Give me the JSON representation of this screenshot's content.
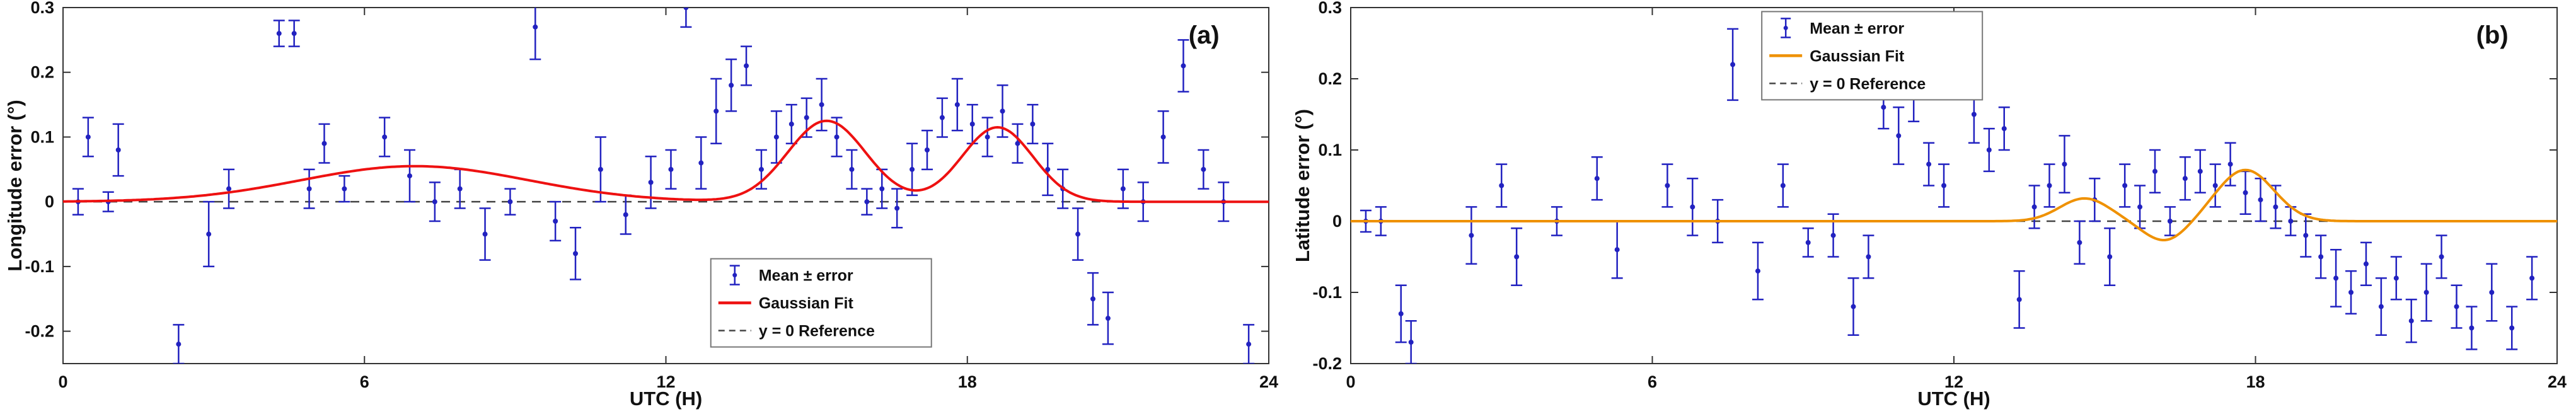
{
  "figure": {
    "background": "#ffffff"
  },
  "chart_data": [
    {
      "type": "scatter",
      "panel_label": "(a)",
      "panel_label_pos": [
        0.935,
        0.105
      ],
      "xlabel": "UTC (H)",
      "ylabel": "Longitude error (°)",
      "xlim": [
        0,
        24
      ],
      "ylim": [
        -0.25,
        0.3
      ],
      "xticks": [
        0,
        6,
        12,
        18,
        24
      ],
      "xticklabels": [
        "0",
        "6",
        "12",
        "18",
        "24"
      ],
      "yticks": [
        0.3,
        0.2,
        0.1,
        0,
        -0.1,
        -0.2
      ],
      "yticklabels": [
        "0.3",
        "0.2",
        "0.1",
        "0",
        "-0.1",
        "-0.2"
      ],
      "grid": false,
      "colors": {
        "frame": "#333333",
        "reference": "#444444",
        "data": "#2222c0",
        "fit": "#ee1111"
      },
      "points": [
        [
          0.3,
          0.0,
          0.02
        ],
        [
          0.5,
          0.1,
          0.03
        ],
        [
          0.9,
          0.0,
          0.015
        ],
        [
          1.1,
          0.08,
          0.04
        ],
        [
          2.3,
          -0.22,
          0.03
        ],
        [
          2.9,
          -0.05,
          0.05
        ],
        [
          3.3,
          0.02,
          0.03
        ],
        [
          4.3,
          0.26,
          0.02
        ],
        [
          4.6,
          0.26,
          0.02
        ],
        [
          4.9,
          0.02,
          0.03
        ],
        [
          5.2,
          0.09,
          0.03
        ],
        [
          5.6,
          0.02,
          0.02
        ],
        [
          6.4,
          0.1,
          0.03
        ],
        [
          6.9,
          0.04,
          0.04
        ],
        [
          7.4,
          0.0,
          0.03
        ],
        [
          7.9,
          0.02,
          0.03
        ],
        [
          8.4,
          -0.05,
          0.04
        ],
        [
          8.9,
          0.0,
          0.02
        ],
        [
          9.4,
          0.27,
          0.05
        ],
        [
          9.8,
          -0.03,
          0.03
        ],
        [
          10.2,
          -0.08,
          0.04
        ],
        [
          10.7,
          0.05,
          0.05
        ],
        [
          11.2,
          -0.02,
          0.03
        ],
        [
          11.7,
          0.03,
          0.04
        ],
        [
          12.1,
          0.05,
          0.03
        ],
        [
          12.4,
          0.3,
          0.03
        ],
        [
          12.7,
          0.06,
          0.04
        ],
        [
          13.0,
          0.14,
          0.05
        ],
        [
          13.3,
          0.18,
          0.04
        ],
        [
          13.6,
          0.21,
          0.03
        ],
        [
          13.9,
          0.05,
          0.03
        ],
        [
          14.2,
          0.1,
          0.04
        ],
        [
          14.5,
          0.12,
          0.03
        ],
        [
          14.8,
          0.13,
          0.03
        ],
        [
          15.1,
          0.15,
          0.04
        ],
        [
          15.4,
          0.1,
          0.03
        ],
        [
          15.7,
          0.05,
          0.03
        ],
        [
          16.0,
          0.0,
          0.02
        ],
        [
          16.3,
          0.02,
          0.03
        ],
        [
          16.6,
          -0.01,
          0.03
        ],
        [
          16.9,
          0.05,
          0.04
        ],
        [
          17.2,
          0.08,
          0.03
        ],
        [
          17.5,
          0.13,
          0.03
        ],
        [
          17.8,
          0.15,
          0.04
        ],
        [
          18.1,
          0.12,
          0.03
        ],
        [
          18.4,
          0.1,
          0.03
        ],
        [
          18.7,
          0.14,
          0.04
        ],
        [
          19.0,
          0.09,
          0.03
        ],
        [
          19.3,
          0.12,
          0.03
        ],
        [
          19.6,
          0.05,
          0.04
        ],
        [
          19.9,
          0.02,
          0.03
        ],
        [
          20.2,
          -0.05,
          0.04
        ],
        [
          20.5,
          -0.15,
          0.04
        ],
        [
          20.8,
          -0.18,
          0.04
        ],
        [
          21.1,
          0.02,
          0.03
        ],
        [
          21.5,
          0.0,
          0.03
        ],
        [
          21.9,
          0.1,
          0.04
        ],
        [
          22.3,
          0.21,
          0.04
        ],
        [
          22.7,
          0.05,
          0.03
        ],
        [
          23.1,
          0.0,
          0.03
        ],
        [
          23.6,
          -0.22,
          0.03
        ]
      ],
      "fit_components": [
        {
          "amp": 0.055,
          "center": 7.0,
          "sigma": 3.2
        },
        {
          "amp": 0.125,
          "center": 15.2,
          "sigma": 1.1
        },
        {
          "amp": 0.115,
          "center": 18.6,
          "sigma": 1.0
        }
      ],
      "legend": {
        "position": "lower-center-right",
        "pos": [
          0.552,
          0.625
        ],
        "entries": [
          {
            "label": "Mean ± error",
            "type": "errorbar",
            "color": "#2222c0"
          },
          {
            "label": "Gaussian Fit",
            "type": "line",
            "color": "#ee1111"
          },
          {
            "label": "y = 0 Reference",
            "type": "dashed",
            "color": "#444444"
          }
        ]
      }
    },
    {
      "type": "scatter",
      "panel_label": "(b)",
      "panel_label_pos": [
        0.935,
        0.105
      ],
      "xlabel": "UTC (H)",
      "ylabel": "Latitude error (°)",
      "xlim": [
        0,
        24
      ],
      "ylim": [
        -0.2,
        0.3
      ],
      "xticks": [
        0,
        6,
        12,
        18,
        24
      ],
      "xticklabels": [
        "0",
        "6",
        "12",
        "18",
        "24"
      ],
      "yticks": [
        0.3,
        0.2,
        0.1,
        0,
        -0.1,
        -0.2
      ],
      "yticklabels": [
        "0.3",
        "0.2",
        "0.1",
        "0",
        "-0.1",
        "-0.2"
      ],
      "grid": false,
      "colors": {
        "frame": "#333333",
        "reference": "#444444",
        "data": "#2222c0",
        "fit": "#ef9100"
      },
      "points": [
        [
          0.3,
          0.0,
          0.015
        ],
        [
          0.6,
          0.0,
          0.02
        ],
        [
          1.0,
          -0.13,
          0.04
        ],
        [
          1.2,
          -0.17,
          0.03
        ],
        [
          2.4,
          -0.02,
          0.04
        ],
        [
          3.0,
          0.05,
          0.03
        ],
        [
          3.3,
          -0.05,
          0.04
        ],
        [
          4.1,
          0.0,
          0.02
        ],
        [
          4.9,
          0.06,
          0.03
        ],
        [
          5.3,
          -0.04,
          0.04
        ],
        [
          6.3,
          0.05,
          0.03
        ],
        [
          6.8,
          0.02,
          0.04
        ],
        [
          7.3,
          0.0,
          0.03
        ],
        [
          7.6,
          0.22,
          0.05
        ],
        [
          8.1,
          -0.07,
          0.04
        ],
        [
          8.6,
          0.05,
          0.03
        ],
        [
          9.1,
          -0.03,
          0.02
        ],
        [
          9.6,
          -0.02,
          0.03
        ],
        [
          10.0,
          -0.12,
          0.04
        ],
        [
          10.3,
          -0.05,
          0.03
        ],
        [
          10.6,
          0.16,
          0.03
        ],
        [
          10.9,
          0.12,
          0.04
        ],
        [
          11.2,
          0.18,
          0.04
        ],
        [
          11.5,
          0.08,
          0.03
        ],
        [
          11.8,
          0.05,
          0.03
        ],
        [
          12.1,
          0.21,
          0.03
        ],
        [
          12.4,
          0.15,
          0.04
        ],
        [
          12.7,
          0.1,
          0.03
        ],
        [
          13.0,
          0.13,
          0.03
        ],
        [
          13.3,
          -0.11,
          0.04
        ],
        [
          13.6,
          0.02,
          0.03
        ],
        [
          13.9,
          0.05,
          0.03
        ],
        [
          14.2,
          0.08,
          0.04
        ],
        [
          14.5,
          -0.03,
          0.03
        ],
        [
          14.8,
          0.03,
          0.03
        ],
        [
          15.1,
          -0.05,
          0.04
        ],
        [
          15.4,
          0.05,
          0.03
        ],
        [
          15.7,
          0.02,
          0.03
        ],
        [
          16.0,
          0.07,
          0.03
        ],
        [
          16.3,
          0.0,
          0.02
        ],
        [
          16.6,
          0.06,
          0.03
        ],
        [
          16.9,
          0.07,
          0.03
        ],
        [
          17.2,
          0.05,
          0.03
        ],
        [
          17.5,
          0.08,
          0.03
        ],
        [
          17.8,
          0.04,
          0.03
        ],
        [
          18.1,
          0.03,
          0.03
        ],
        [
          18.4,
          0.02,
          0.03
        ],
        [
          18.7,
          0.0,
          0.02
        ],
        [
          19.0,
          -0.02,
          0.03
        ],
        [
          19.3,
          -0.05,
          0.03
        ],
        [
          19.6,
          -0.08,
          0.04
        ],
        [
          19.9,
          -0.1,
          0.03
        ],
        [
          20.2,
          -0.06,
          0.03
        ],
        [
          20.5,
          -0.12,
          0.04
        ],
        [
          20.8,
          -0.08,
          0.03
        ],
        [
          21.1,
          -0.14,
          0.03
        ],
        [
          21.4,
          -0.1,
          0.04
        ],
        [
          21.7,
          -0.05,
          0.03
        ],
        [
          22.0,
          -0.12,
          0.03
        ],
        [
          22.3,
          -0.15,
          0.03
        ],
        [
          22.7,
          -0.1,
          0.04
        ],
        [
          23.1,
          -0.15,
          0.03
        ],
        [
          23.5,
          -0.08,
          0.03
        ]
      ],
      "fit_components": [
        {
          "amp": 0.032,
          "center": 14.6,
          "sigma": 0.7
        },
        {
          "amp": -0.028,
          "center": 16.2,
          "sigma": 0.6
        },
        {
          "amp": 0.072,
          "center": 17.8,
          "sigma": 0.8
        }
      ],
      "legend": {
        "position": "top-center",
        "pos": [
          0.368,
          0.028
        ],
        "entries": [
          {
            "label": "Mean ± error",
            "type": "errorbar",
            "color": "#2222c0"
          },
          {
            "label": "Gaussian Fit",
            "type": "line",
            "color": "#ef9100"
          },
          {
            "label": "y = 0 Reference",
            "type": "dashed",
            "color": "#444444"
          }
        ]
      }
    }
  ]
}
